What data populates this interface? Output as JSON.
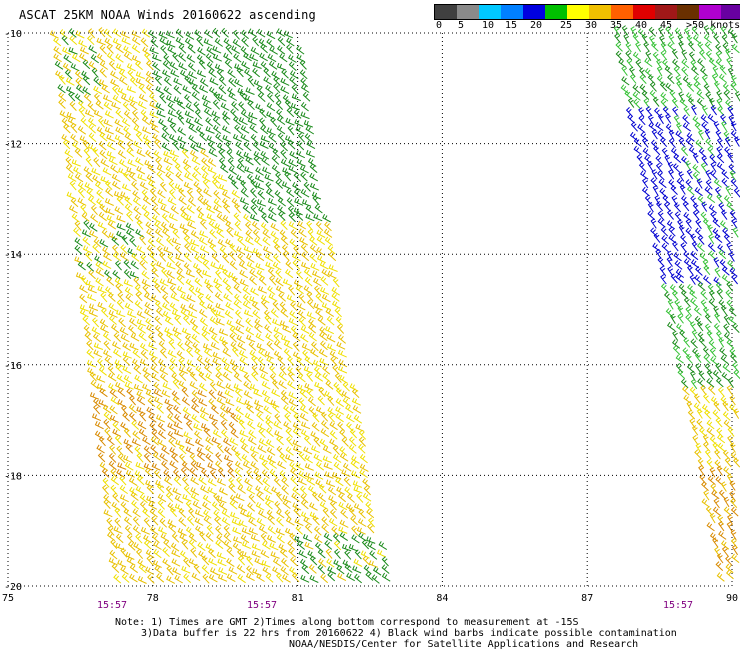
{
  "title": "ASCAT 25KM NOAA Winds 20160622 ascending",
  "colorbar": {
    "colors": [
      "#404040",
      "#8a8a8a",
      "#00c8ff",
      "#0080ff",
      "#0000e0",
      "#00c000",
      "#ffff00",
      "#f0c000",
      "#ff6000",
      "#e00000",
      "#a01818",
      "#6a3000",
      "#b000d0",
      "#6800a0",
      "#300070"
    ],
    "labels": [
      "0",
      "5",
      "10",
      "15",
      "20",
      "25",
      "30",
      "35",
      "40",
      "45",
      ">50"
    ],
    "units": ">50 knots"
  },
  "map": {
    "lon_ticks": [
      "75",
      "78",
      "81",
      "84",
      "87",
      "90"
    ],
    "lat_ticks": [
      "-10",
      "-12",
      "-14",
      "-16",
      "-18",
      "-20"
    ],
    "lon_range": [
      75,
      90
    ],
    "lat_range": [
      -20,
      -10
    ],
    "grid": true,
    "times": [
      "15:57",
      "15:57",
      "15:57"
    ]
  },
  "swaths": {
    "colors": {
      "dark_green": "#1a8a1a",
      "green": "#36c236",
      "blue": "#0000d0",
      "yellow": "#f0e000",
      "gold": "#e8c000",
      "orange": "#d88a00"
    }
  },
  "notes": {
    "line1": "Note: 1) Times are GMT 2)Times along bottom correspond to measurement at -15S",
    "line2": "3)Data buffer is 22 hrs from 20160622 4) Black wind barbs indicate possible contamination",
    "line3": "NOAA/NESDIS/Center for Satellite Applications and Research"
  }
}
